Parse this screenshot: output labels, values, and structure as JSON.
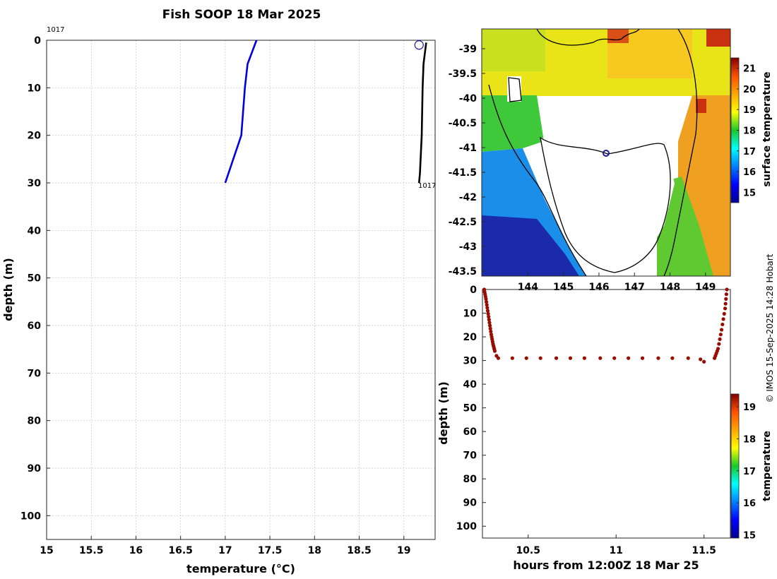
{
  "figure": {
    "title": "Fish SOOP 18 Mar 2025",
    "credit": "© IMOS 15-Sep-2025 14:28 Hobart"
  },
  "chart_data": [
    {
      "name": "temperature-profile",
      "type": "line",
      "xlabel": "temperature (°C)",
      "ylabel": "depth (m)",
      "xlim": [
        15,
        19.35
      ],
      "ylim": [
        0,
        105
      ],
      "y_reversed": true,
      "xticks": [
        "15",
        "15.5",
        "16",
        "16.5",
        "17",
        "17.5",
        "18",
        "18.5",
        "19"
      ],
      "yticks": [
        "0",
        "10",
        "20",
        "30",
        "40",
        "50",
        "60",
        "70",
        "80",
        "90",
        "100"
      ],
      "grid": true,
      "labels": {
        "top": "1017",
        "bottom": "1017"
      },
      "series": [
        {
          "name": "previous-profile",
          "color": "#0000dd",
          "x": [
            17.35,
            17.25,
            17.22,
            17.18,
            17.0
          ],
          "y": [
            0,
            5,
            10,
            20,
            30
          ]
        },
        {
          "name": "current-profile",
          "color": "#000000",
          "x": [
            19.25,
            19.22,
            19.21,
            19.2,
            19.18,
            19.17
          ],
          "y": [
            0.5,
            5,
            10,
            20,
            28,
            30
          ]
        }
      ],
      "start_marker": {
        "x": 19.17,
        "y": 1
      }
    },
    {
      "name": "surface-temperature-map",
      "type": "heatmap",
      "lon_ticks": [
        "144",
        "145",
        "146",
        "147",
        "148",
        "149"
      ],
      "lat_ticks": [
        "-39",
        "-39.5",
        "-40",
        "-40.5",
        "-41",
        "-41.5",
        "-42",
        "-42.5",
        "-43",
        "-43.5"
      ],
      "xlim": [
        142.7,
        149.7
      ],
      "ylim": [
        -43.6,
        -38.6
      ],
      "colorbar_label": "surface temperature",
      "colorbar_ticks": [
        "15",
        "16",
        "17",
        "18",
        "19",
        "20",
        "21"
      ],
      "colorbar_range": [
        14.5,
        21.5
      ],
      "position_marker": {
        "lon": 146.4,
        "lat": -41.1
      }
    },
    {
      "name": "depth-time-section",
      "type": "scatter",
      "xlabel": "hours from 12:00Z 18 Mar 25",
      "ylabel": "depth (m)",
      "xlim": [
        10.24,
        11.65
      ],
      "ylim": [
        0,
        105
      ],
      "y_reversed": true,
      "xticks": [
        "10.5",
        "11",
        "11.5"
      ],
      "yticks": [
        "0",
        "10",
        "20",
        "30",
        "40",
        "50",
        "60",
        "70",
        "80",
        "90",
        "100"
      ],
      "colorbar_label": "temperature",
      "colorbar_ticks": [
        "15",
        "16",
        "17",
        "18",
        "19"
      ],
      "colorbar_range": [
        14.9,
        19.4
      ],
      "points": {
        "x": [
          10.25,
          10.26,
          10.27,
          10.28,
          10.29,
          10.3,
          10.31,
          10.32,
          10.33,
          10.41,
          10.49,
          10.57,
          10.66,
          10.74,
          10.82,
          10.91,
          10.99,
          11.07,
          11.15,
          11.24,
          11.32,
          11.41,
          11.48,
          11.5,
          11.56,
          11.58,
          11.6,
          11.62,
          11.63
        ],
        "y": [
          0,
          4,
          9,
          14,
          19,
          23,
          26,
          28,
          29,
          29,
          29,
          29,
          29,
          29,
          29,
          29,
          29,
          29,
          29,
          29,
          29,
          29,
          29.5,
          30.5,
          29,
          25,
          17,
          8,
          0
        ],
        "temperature": [
          19.3,
          19.3,
          19.3,
          19.3,
          19.3,
          19.3,
          19.3,
          19.3,
          19.3,
          19.3,
          19.3,
          19.3,
          19.3,
          19.3,
          19.3,
          19.3,
          19.3,
          19.3,
          19.3,
          19.3,
          19.3,
          19.3,
          19.3,
          19.3,
          19.3,
          19.3,
          19.3,
          19.3,
          19.3
        ]
      }
    }
  ]
}
